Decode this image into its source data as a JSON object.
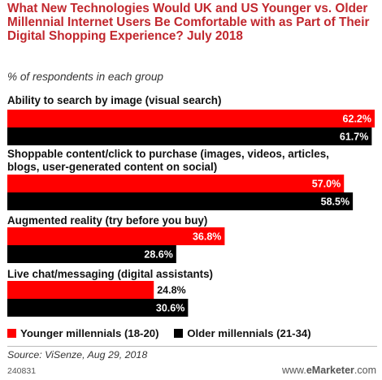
{
  "chart_data": {
    "type": "bar",
    "orientation": "horizontal",
    "title": "What New Technologies Would UK and US Younger vs. Older Millennial Internet Users Be Comfortable with as Part of Their Digital Shopping Experience? July 2018",
    "subtitle": "% of respondents in each group",
    "categories": [
      "Ability to search by image (visual search)",
      "Shoppable content/click to purchase (images, videos, articles, blogs, user-generated content on social)",
      "Augmented reality (try before you buy)",
      "Live chat/messaging (digital assistants)"
    ],
    "series": [
      {
        "name": "Younger millennials (18-20)",
        "values": [
          62.2,
          57.0,
          36.8,
          24.8
        ],
        "labels": [
          "62.2%",
          "57.0%",
          "36.8%",
          "24.8%"
        ],
        "color": "#ff0000"
      },
      {
        "name": "Older millennials (21-34)",
        "values": [
          61.7,
          58.5,
          28.6,
          30.6
        ],
        "labels": [
          "61.7%",
          "58.5%",
          "28.6%",
          "30.6%"
        ],
        "color": "#000000"
      }
    ],
    "xlim": [
      0,
      62.2
    ],
    "grid": false,
    "legend_position": "bottom"
  },
  "footer": {
    "source": "Source: ViSenze, Aug 29, 2018",
    "chart_id": "240831",
    "brand_prefix": "www.",
    "brand_name": "eMarketer",
    "brand_suffix": ".com"
  }
}
